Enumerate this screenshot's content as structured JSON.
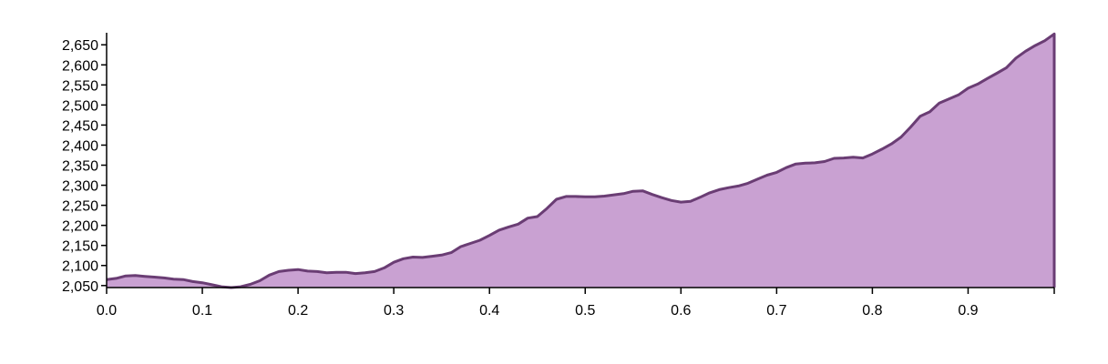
{
  "colors": {
    "fill": "#c9a1d2",
    "stroke": "#6a3d74",
    "axis": "#000000",
    "background": "#ffffff"
  },
  "chart_data": {
    "type": "area",
    "title": "",
    "xlabel": "",
    "ylabel": "",
    "xlim": [
      0,
      0.99
    ],
    "ylim": [
      2045,
      2680
    ],
    "grid": false,
    "x_ticks": [
      0.0,
      0.1,
      0.2,
      0.3,
      0.4,
      0.5,
      0.6,
      0.7,
      0.8,
      0.9
    ],
    "x_tick_labels": [
      "0.0",
      "0.1",
      "0.2",
      "0.3",
      "0.4",
      "0.5",
      "0.6",
      "0.7",
      "0.8",
      "0.9"
    ],
    "y_ticks": [
      2050,
      2100,
      2150,
      2200,
      2250,
      2300,
      2350,
      2400,
      2450,
      2500,
      2550,
      2600,
      2650
    ],
    "y_tick_labels": [
      "2,050",
      "2,100",
      "2,150",
      "2,200",
      "2,250",
      "2,300",
      "2,350",
      "2,400",
      "2,450",
      "2,500",
      "2,550",
      "2,600",
      "2,650"
    ],
    "series": [
      {
        "x": [
          0.0,
          0.01,
          0.02,
          0.03,
          0.04,
          0.05,
          0.06,
          0.07,
          0.08,
          0.09,
          0.1,
          0.11,
          0.12,
          0.13,
          0.14,
          0.15,
          0.16,
          0.17,
          0.18,
          0.19,
          0.2,
          0.21,
          0.22,
          0.23,
          0.24,
          0.25,
          0.26,
          0.27,
          0.28,
          0.29,
          0.3,
          0.31,
          0.32,
          0.33,
          0.34,
          0.35,
          0.36,
          0.37,
          0.38,
          0.39,
          0.4,
          0.41,
          0.42,
          0.43,
          0.44,
          0.45,
          0.46,
          0.47,
          0.48,
          0.49,
          0.5,
          0.51,
          0.52,
          0.53,
          0.54,
          0.55,
          0.56,
          0.57,
          0.58,
          0.59,
          0.6,
          0.61,
          0.62,
          0.63,
          0.64,
          0.65,
          0.66,
          0.67,
          0.68,
          0.69,
          0.7,
          0.71,
          0.72,
          0.73,
          0.74,
          0.75,
          0.76,
          0.77,
          0.78,
          0.79,
          0.8,
          0.81,
          0.82,
          0.83,
          0.84,
          0.85,
          0.86,
          0.87,
          0.88,
          0.89,
          0.9,
          0.91,
          0.92,
          0.93,
          0.94,
          0.95,
          0.96,
          0.97,
          0.98,
          0.99
        ],
        "values": [
          2065,
          2068,
          2074,
          2075,
          2073,
          2071,
          2069,
          2066,
          2065,
          2060,
          2057,
          2052,
          2047,
          2045,
          2047,
          2053,
          2062,
          2076,
          2085,
          2088,
          2090,
          2086,
          2085,
          2082,
          2083,
          2083,
          2080,
          2082,
          2085,
          2094,
          2108,
          2117,
          2121,
          2120,
          2123,
          2126,
          2132,
          2147,
          2155,
          2163,
          2175,
          2188,
          2196,
          2203,
          2218,
          2222,
          2242,
          2265,
          2272,
          2272,
          2271,
          2271,
          2273,
          2276,
          2279,
          2285,
          2286,
          2277,
          2269,
          2262,
          2258,
          2260,
          2270,
          2281,
          2289,
          2294,
          2298,
          2305,
          2315,
          2325,
          2332,
          2344,
          2353,
          2355,
          2356,
          2359,
          2367,
          2368,
          2370,
          2368,
          2378,
          2390,
          2403,
          2420,
          2445,
          2472,
          2483,
          2505,
          2515,
          2525,
          2542,
          2552,
          2566,
          2579,
          2593,
          2617,
          2634,
          2648,
          2660,
          2677
        ]
      }
    ]
  }
}
